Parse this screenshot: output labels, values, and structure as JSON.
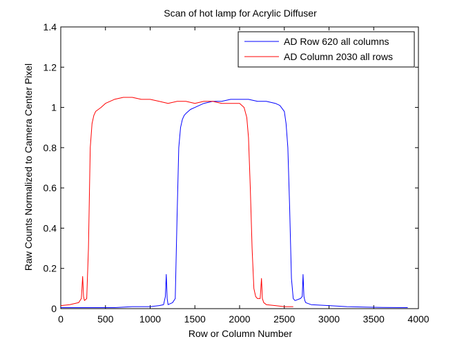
{
  "chart_data": {
    "type": "line",
    "title": "Scan of hot lamp for Acrylic Diffuser",
    "xlabel": "Row or Column Number",
    "ylabel": "Raw Counts Normalized to Camera Center Pixel",
    "xlim": [
      0,
      4000
    ],
    "ylim": [
      0,
      1.4
    ],
    "xticks": [
      0,
      500,
      1000,
      1500,
      2000,
      2500,
      3000,
      3500,
      4000
    ],
    "yticks": [
      0,
      0.2,
      0.4,
      0.6,
      0.8,
      1,
      1.2,
      1.4
    ],
    "xtick_labels": [
      "0",
      "500",
      "1000",
      "1500",
      "2000",
      "2500",
      "3000",
      "3500",
      "4000"
    ],
    "ytick_labels": [
      "0",
      "0.2",
      "0.4",
      "0.6",
      "0.8",
      "1",
      "1.2",
      "1.4"
    ],
    "grid": false,
    "legend_position": "top-right",
    "series": [
      {
        "name": "AD Row 620 all columns",
        "color": "#0000ff",
        "x": [
          0,
          200,
          400,
          600,
          800,
          1000,
          1100,
          1150,
          1170,
          1180,
          1190,
          1200,
          1250,
          1280,
          1300,
          1320,
          1340,
          1360,
          1380,
          1400,
          1450,
          1500,
          1600,
          1700,
          1800,
          1900,
          2000,
          2100,
          2200,
          2300,
          2400,
          2450,
          2500,
          2520,
          2540,
          2560,
          2580,
          2600,
          2620,
          2680,
          2700,
          2710,
          2720,
          2730,
          2740,
          2800,
          3000,
          3200,
          3400,
          3600,
          3880
        ],
        "y": [
          0.005,
          0.005,
          0.005,
          0.005,
          0.01,
          0.01,
          0.015,
          0.02,
          0.06,
          0.17,
          0.05,
          0.02,
          0.03,
          0.05,
          0.45,
          0.8,
          0.9,
          0.94,
          0.96,
          0.97,
          0.99,
          1.0,
          1.02,
          1.03,
          1.03,
          1.04,
          1.04,
          1.04,
          1.03,
          1.03,
          1.02,
          1.01,
          0.98,
          0.92,
          0.8,
          0.5,
          0.15,
          0.05,
          0.04,
          0.05,
          0.06,
          0.17,
          0.06,
          0.04,
          0.03,
          0.02,
          0.015,
          0.01,
          0.008,
          0.006,
          0.005
        ]
      },
      {
        "name": "AD Column 2030 all rows",
        "color": "#ff0000",
        "x": [
          0,
          100,
          200,
          230,
          245,
          255,
          265,
          290,
          310,
          330,
          350,
          370,
          390,
          420,
          450,
          500,
          600,
          700,
          800,
          900,
          1000,
          1100,
          1200,
          1300,
          1400,
          1500,
          1600,
          1700,
          1800,
          1900,
          2000,
          2050,
          2080,
          2100,
          2120,
          2140,
          2160,
          2180,
          2200,
          2230,
          2245,
          2255,
          2270,
          2300,
          2400,
          2500,
          2600
        ],
        "y": [
          0.015,
          0.02,
          0.03,
          0.05,
          0.16,
          0.06,
          0.04,
          0.05,
          0.3,
          0.8,
          0.92,
          0.96,
          0.98,
          0.99,
          1.0,
          1.02,
          1.04,
          1.05,
          1.05,
          1.04,
          1.04,
          1.03,
          1.02,
          1.03,
          1.03,
          1.02,
          1.03,
          1.03,
          1.02,
          1.02,
          1.02,
          1.0,
          0.95,
          0.85,
          0.6,
          0.3,
          0.1,
          0.06,
          0.05,
          0.05,
          0.15,
          0.05,
          0.03,
          0.02,
          0.015,
          0.01,
          0.01
        ]
      }
    ]
  }
}
